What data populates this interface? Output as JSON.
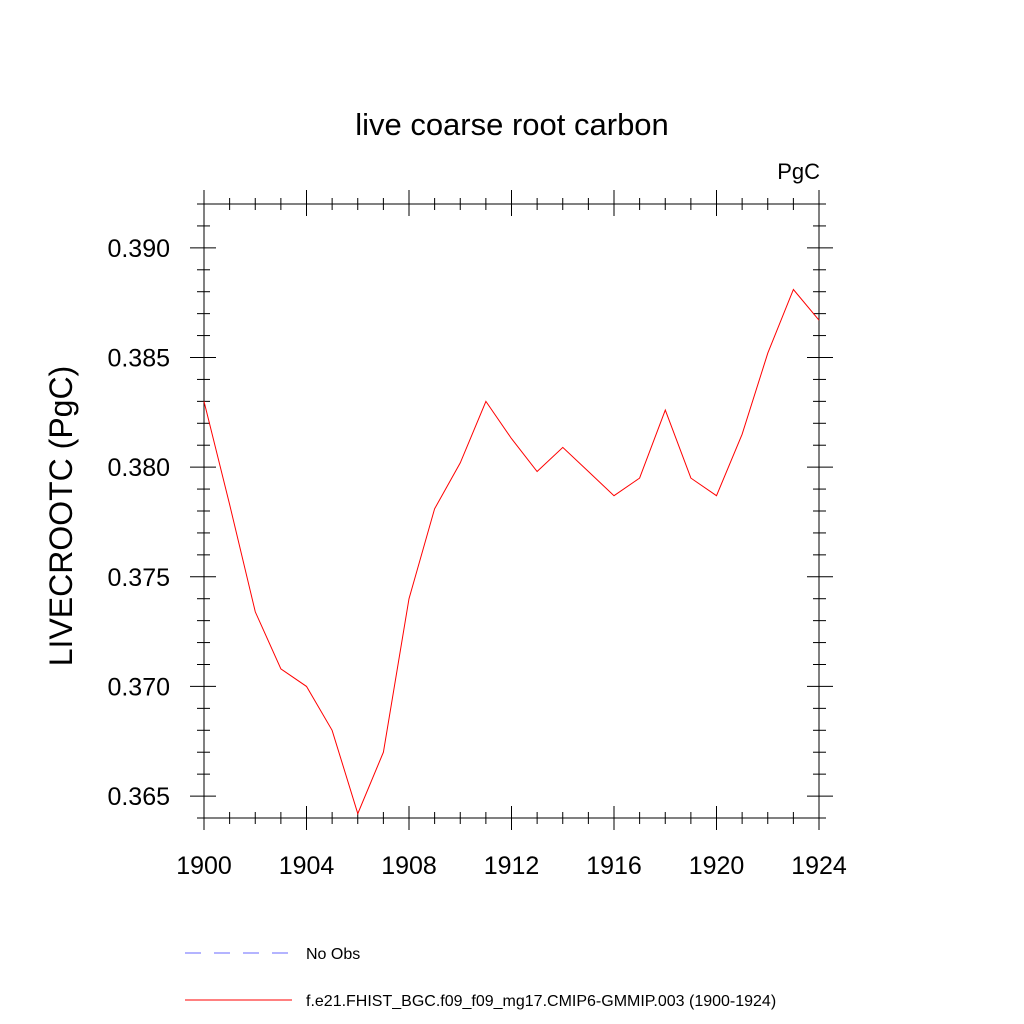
{
  "chart_data": {
    "type": "line",
    "title": "live coarse root carbon",
    "units_label": "PgC",
    "ylabel": "LIVECROOTC  (PgC)",
    "xlabel": "",
    "xlim": [
      1900,
      1924
    ],
    "ylim": [
      0.364,
      0.392
    ],
    "x_ticks": [
      1900,
      1904,
      1908,
      1912,
      1916,
      1920,
      1924
    ],
    "y_ticks": [
      0.365,
      0.37,
      0.375,
      0.38,
      0.385,
      0.39
    ],
    "y_tick_labels": [
      "0.365",
      "0.370",
      "0.375",
      "0.380",
      "0.385",
      "0.390"
    ],
    "grid": false,
    "legend_position": "bottom",
    "series": [
      {
        "name": "f.e21.FHIST_BGC.f09_f09_mg17.CMIP6-GMMIP.003 (1900-1924)",
        "color": "#ff0000",
        "dash": "solid",
        "x": [
          1900,
          1901,
          1902,
          1903,
          1904,
          1905,
          1906,
          1907,
          1908,
          1909,
          1910,
          1911,
          1912,
          1913,
          1914,
          1915,
          1916,
          1917,
          1918,
          1919,
          1920,
          1921,
          1922,
          1923,
          1924
        ],
        "values": [
          0.383,
          0.3783,
          0.3734,
          0.3708,
          0.37,
          0.368,
          0.3642,
          0.367,
          0.374,
          0.3781,
          0.3802,
          0.383,
          0.3813,
          0.3798,
          0.3809,
          0.3798,
          0.3787,
          0.3795,
          0.3826,
          0.3795,
          0.3787,
          0.3815,
          0.3852,
          0.3881,
          0.3867
        ]
      }
    ],
    "legend": [
      {
        "label": "No Obs",
        "color": "#6a6aff",
        "dash": "dashed"
      },
      {
        "label": "f.e21.FHIST_BGC.f09_f09_mg17.CMIP6-GMMIP.003 (1900-1924)",
        "color": "#ff0000",
        "dash": "solid"
      }
    ]
  }
}
